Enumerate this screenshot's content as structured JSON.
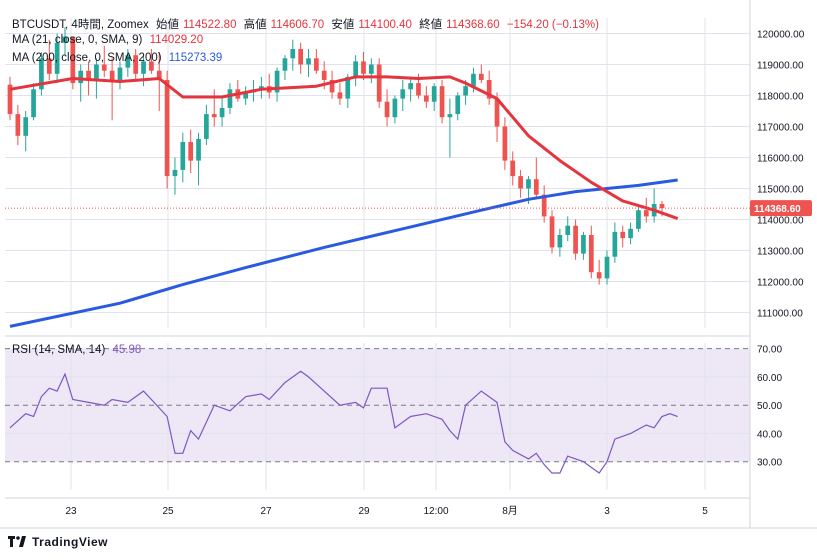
{
  "header": {
    "symbol": "BTCUSDT, 4時間, Zoomex",
    "open_label": "始値",
    "open": "114522.80",
    "high_label": "高値",
    "high": "114606.70",
    "low_label": "安値",
    "low": "114100.40",
    "close_label": "終値",
    "close": "114368.60",
    "change": "−154.20 (−0.13%)"
  },
  "ma21": {
    "label": "MA (21, close, 0, SMA, 9)",
    "value": "114029.20",
    "color": "#e5343d"
  },
  "ma200": {
    "label": "MA (200, close, 0, SMA, 200)",
    "value": "115273.39",
    "color": "#2a5ae0"
  },
  "rsi": {
    "label": "RSI (14, SMA, 14)",
    "value": "45.98",
    "color": "#7e57c2"
  },
  "price_tag": "114368.60",
  "branding": {
    "name": "TradingView"
  },
  "colors": {
    "up": "#26a69a",
    "down": "#ef5350",
    "grid": "#e0e3eb",
    "rsi_band": "#ede7f6"
  },
  "chart_data": {
    "type": "candlestick",
    "price_axis": {
      "ticks": [
        "120000.00",
        "119000.00",
        "118000.00",
        "117000.00",
        "116000.00",
        "115000.00",
        "114000.00",
        "113000.00",
        "112000.00",
        "111000.00"
      ],
      "ylim": [
        110500,
        120500
      ]
    },
    "rsi_axis": {
      "ticks": [
        "70.00",
        "60.00",
        "50.00",
        "40.00",
        "30.00"
      ],
      "ylim": [
        20,
        72
      ]
    },
    "x_ticks": [
      "23",
      "25",
      "27",
      "29",
      "12:00",
      "8月",
      "3",
      "5"
    ],
    "candles": [
      [
        118350,
        118600,
        117200,
        117400
      ],
      [
        117400,
        117700,
        116400,
        116700
      ],
      [
        116700,
        117500,
        116200,
        117300
      ],
      [
        117300,
        118400,
        117200,
        118200
      ],
      [
        118200,
        119400,
        118000,
        119200
      ],
      [
        119200,
        119800,
        118500,
        118700
      ],
      [
        118700,
        120000,
        118400,
        119700
      ],
      [
        119700,
        120200,
        119300,
        119900
      ],
      [
        119900,
        119900,
        118200,
        118400
      ],
      [
        118400,
        119000,
        117800,
        118800
      ],
      [
        118800,
        119100,
        118000,
        118500
      ],
      [
        118500,
        119200,
        117900,
        119000
      ],
      [
        119000,
        119600,
        118600,
        118800
      ],
      [
        118800,
        119200,
        117200,
        118500
      ],
      [
        118500,
        119100,
        118200,
        118900
      ],
      [
        118900,
        119500,
        118600,
        119300
      ],
      [
        119300,
        119500,
        118500,
        118700
      ],
      [
        118700,
        119300,
        118300,
        119100
      ],
      [
        119100,
        119500,
        118700,
        118800
      ],
      [
        118800,
        119400,
        117500,
        118500
      ],
      [
        118500,
        118800,
        115000,
        115400
      ],
      [
        115400,
        116000,
        114800,
        115600
      ],
      [
        115600,
        116800,
        115200,
        116500
      ],
      [
        116500,
        116900,
        115500,
        115900
      ],
      [
        115900,
        116800,
        115100,
        116600
      ],
      [
        116600,
        117700,
        116400,
        117400
      ],
      [
        117400,
        118200,
        117000,
        117300
      ],
      [
        117300,
        117900,
        117000,
        117600
      ],
      [
        117600,
        118400,
        117400,
        118200
      ],
      [
        118200,
        118500,
        117800,
        117900
      ],
      [
        117900,
        118300,
        117700,
        118100
      ],
      [
        118100,
        118500,
        117800,
        118200
      ],
      [
        118200,
        118600,
        117900,
        118300
      ],
      [
        118300,
        118700,
        117900,
        118100
      ],
      [
        118100,
        118900,
        117800,
        118800
      ],
      [
        118800,
        119300,
        118500,
        119200
      ],
      [
        119200,
        119800,
        118800,
        119500
      ],
      [
        119500,
        119700,
        118700,
        119000
      ],
      [
        119000,
        119500,
        118600,
        119200
      ],
      [
        119200,
        119500,
        118700,
        118800
      ],
      [
        118800,
        119100,
        118200,
        118500
      ],
      [
        118500,
        118800,
        117900,
        118100
      ],
      [
        118100,
        118400,
        117700,
        117900
      ],
      [
        117900,
        118700,
        117600,
        118600
      ],
      [
        118600,
        119300,
        118300,
        119100
      ],
      [
        119100,
        119400,
        118500,
        118700
      ],
      [
        118700,
        119200,
        118400,
        119000
      ],
      [
        119000,
        119200,
        117600,
        117800
      ],
      [
        117800,
        118200,
        117000,
        117300
      ],
      [
        117300,
        118000,
        117100,
        117900
      ],
      [
        117900,
        118500,
        117500,
        118200
      ],
      [
        118200,
        118600,
        117800,
        118400
      ],
      [
        118400,
        118700,
        117900,
        118000
      ],
      [
        118000,
        118300,
        117600,
        117800
      ],
      [
        117800,
        118400,
        117500,
        118300
      ],
      [
        118300,
        118500,
        117100,
        117300
      ],
      [
        117300,
        117900,
        116000,
        117400
      ],
      [
        117400,
        118100,
        117200,
        118000
      ],
      [
        118000,
        118500,
        117700,
        118300
      ],
      [
        118300,
        118900,
        118100,
        118700
      ],
      [
        118700,
        119000,
        118400,
        118500
      ],
      [
        118500,
        118800,
        117700,
        117900
      ],
      [
        117900,
        118100,
        116500,
        117000
      ],
      [
        117000,
        117300,
        115600,
        115900
      ],
      [
        115900,
        116200,
        115100,
        115400
      ],
      [
        115400,
        115600,
        114700,
        115000
      ],
      [
        115000,
        115400,
        114500,
        115300
      ],
      [
        115300,
        116000,
        114700,
        114800
      ],
      [
        114800,
        115100,
        113900,
        114100
      ],
      [
        114100,
        114300,
        112900,
        113100
      ],
      [
        113100,
        113700,
        112800,
        113500
      ],
      [
        113500,
        114100,
        113300,
        113800
      ],
      [
        113800,
        114000,
        112700,
        112900
      ],
      [
        112900,
        113600,
        112700,
        113500
      ],
      [
        113500,
        113800,
        112100,
        112300
      ],
      [
        112300,
        112700,
        111900,
        112100
      ],
      [
        112100,
        113000,
        111900,
        112800
      ],
      [
        112800,
        113900,
        112600,
        113600
      ],
      [
        113600,
        113800,
        113100,
        113400
      ],
      [
        113400,
        113900,
        113200,
        113700
      ],
      [
        113700,
        114500,
        113600,
        114300
      ],
      [
        114300,
        114700,
        113900,
        114100
      ],
      [
        114100,
        115000,
        113900,
        114500
      ],
      [
        114500,
        114600,
        114100,
        114368
      ]
    ],
    "ma21_points": [
      [
        0,
        118200
      ],
      [
        8,
        118550
      ],
      [
        14,
        118450
      ],
      [
        19,
        118550
      ],
      [
        22,
        117950
      ],
      [
        27,
        117950
      ],
      [
        32,
        118200
      ],
      [
        39,
        118300
      ],
      [
        44,
        118600
      ],
      [
        48,
        118600
      ],
      [
        52,
        118550
      ],
      [
        56,
        118600
      ],
      [
        58,
        118400
      ],
      [
        62,
        117900
      ],
      [
        66,
        116700
      ],
      [
        70,
        115900
      ],
      [
        74,
        115200
      ],
      [
        78,
        114600
      ],
      [
        82,
        114300
      ],
      [
        85,
        114029
      ]
    ],
    "ma200_points": [
      [
        0,
        110550
      ],
      [
        14,
        111300
      ],
      [
        22,
        111900
      ],
      [
        30,
        112450
      ],
      [
        40,
        113100
      ],
      [
        50,
        113700
      ],
      [
        60,
        114300
      ],
      [
        66,
        114650
      ],
      [
        72,
        114900
      ],
      [
        80,
        115100
      ],
      [
        85,
        115273
      ]
    ],
    "rsi_points": [
      [
        0,
        42
      ],
      [
        2,
        47
      ],
      [
        3,
        46
      ],
      [
        4,
        53
      ],
      [
        5,
        56
      ],
      [
        6,
        55
      ],
      [
        7,
        61
      ],
      [
        8,
        52
      ],
      [
        10,
        51
      ],
      [
        12,
        50
      ],
      [
        13,
        52
      ],
      [
        15,
        51
      ],
      [
        17,
        55
      ],
      [
        18,
        52
      ],
      [
        20,
        46
      ],
      [
        21,
        33
      ],
      [
        22,
        33
      ],
      [
        23,
        41
      ],
      [
        24,
        38
      ],
      [
        26,
        50
      ],
      [
        28,
        48
      ],
      [
        30,
        53
      ],
      [
        32,
        54
      ],
      [
        33,
        52
      ],
      [
        35,
        58
      ],
      [
        37,
        62
      ],
      [
        38,
        60
      ],
      [
        40,
        55
      ],
      [
        42,
        50
      ],
      [
        44,
        51
      ],
      [
        45,
        49
      ],
      [
        46,
        56
      ],
      [
        48,
        56
      ],
      [
        49,
        42
      ],
      [
        51,
        46
      ],
      [
        53,
        47
      ],
      [
        55,
        45
      ],
      [
        56,
        41
      ],
      [
        57,
        38
      ],
      [
        58,
        50
      ],
      [
        60,
        55
      ],
      [
        62,
        51
      ],
      [
        63,
        37
      ],
      [
        64,
        34
      ],
      [
        66,
        31
      ],
      [
        67,
        33
      ],
      [
        68,
        29
      ],
      [
        69,
        26
      ],
      [
        70,
        26
      ],
      [
        71,
        32
      ],
      [
        72,
        31
      ],
      [
        73,
        30
      ],
      [
        74,
        28
      ],
      [
        75,
        26
      ],
      [
        76,
        30
      ],
      [
        77,
        38
      ],
      [
        79,
        40
      ],
      [
        81,
        43
      ],
      [
        82,
        42
      ],
      [
        83,
        46
      ],
      [
        84,
        47
      ],
      [
        85,
        45.98
      ]
    ]
  }
}
